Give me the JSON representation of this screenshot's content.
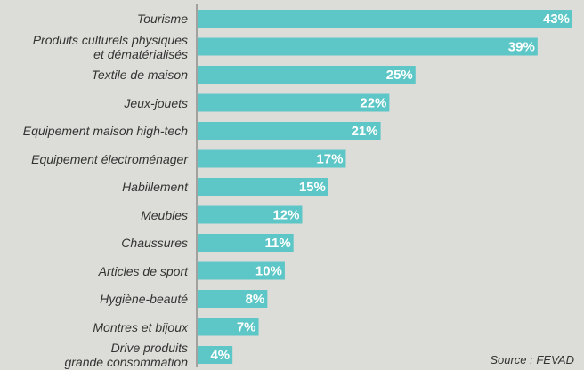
{
  "chart_data": {
    "type": "bar",
    "orientation": "horizontal",
    "categories": [
      "Tourisme",
      "Produits culturels physiques\net dématérialisés",
      "Textile de maison",
      "Jeux-jouets",
      "Equipement maison high-tech",
      "Equipement électroménager",
      "Habillement",
      "Meubles",
      "Chaussures",
      "Articles de sport",
      "Hygiène-beauté",
      "Montres et bijoux",
      "Drive produits\ngrande consommation"
    ],
    "values": [
      43,
      39,
      25,
      22,
      21,
      17,
      15,
      12,
      11,
      10,
      8,
      7,
      4
    ],
    "value_labels": [
      "43%",
      "39%",
      "25%",
      "22%",
      "21%",
      "17%",
      "15%",
      "12%",
      "11%",
      "10%",
      "8%",
      "7%",
      "4%"
    ],
    "color": "#5dc6c6",
    "annotation": "Source : FEVAD"
  }
}
